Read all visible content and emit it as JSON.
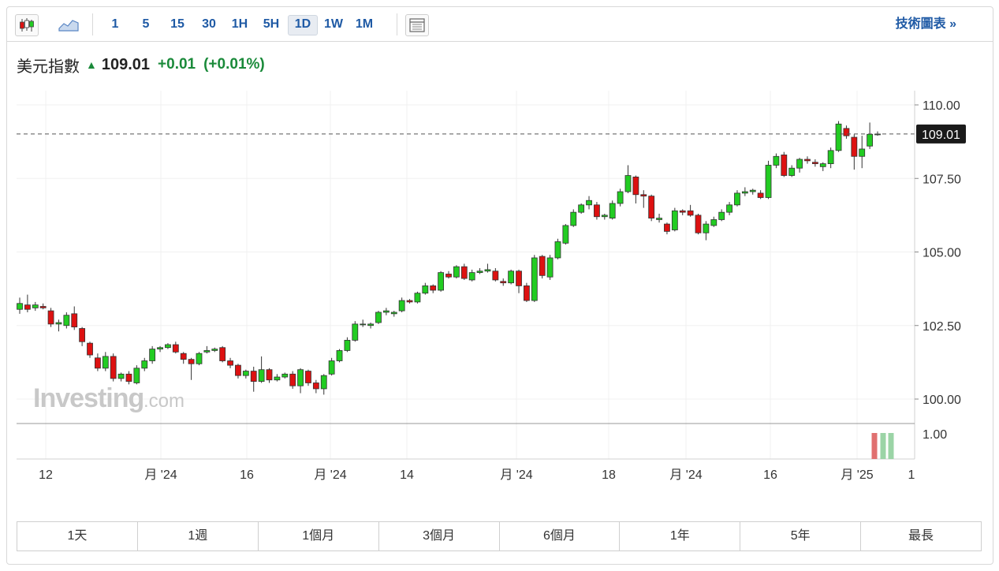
{
  "toolbar": {
    "intervals": [
      "1",
      "5",
      "15",
      "30",
      "1H",
      "5H",
      "1D",
      "1W",
      "1M"
    ],
    "active_interval": "1D",
    "tech_link": "技術圖表 »"
  },
  "quote": {
    "name": "美元指數",
    "price": "109.01",
    "change": "+0.01",
    "change_pct": "(+0.01%)",
    "direction": "up"
  },
  "colors": {
    "up": "#22cc22",
    "down": "#dd1111",
    "link": "#1f5aa5",
    "positive_text": "#1a8a3a"
  },
  "watermark": {
    "brand": "Investing",
    "suffix": ".com"
  },
  "chart_data": {
    "type": "candlestick",
    "y_ticks": [
      "110.00",
      "107.50",
      "105.00",
      "102.50",
      "100.00"
    ],
    "ylim": [
      99.7,
      110.5
    ],
    "x_ticks": [
      "12",
      "月 '24",
      "16",
      "月 '24",
      "14",
      "月 '24",
      "18",
      "月 '24",
      "16",
      "月 '25",
      "1"
    ],
    "last_price_label": "109.01",
    "last_price": 109.01,
    "volume_axis_label": "1.00",
    "candles": [
      [
        103.05,
        103.25,
        103.45,
        102.9
      ],
      [
        103.2,
        103.05,
        103.55,
        102.95
      ],
      [
        103.1,
        103.2,
        103.3,
        103.0
      ],
      [
        103.15,
        103.1,
        103.25,
        103.05
      ],
      [
        103.0,
        102.55,
        103.1,
        102.45
      ],
      [
        102.55,
        102.6,
        102.7,
        102.3
      ],
      [
        102.5,
        102.85,
        102.95,
        102.4
      ],
      [
        102.9,
        102.45,
        103.15,
        102.35
      ],
      [
        102.4,
        101.95,
        102.45,
        101.8
      ],
      [
        101.9,
        101.5,
        101.95,
        101.4
      ],
      [
        101.4,
        101.05,
        101.55,
        100.95
      ],
      [
        101.05,
        101.45,
        101.6,
        100.95
      ],
      [
        101.45,
        100.7,
        101.55,
        100.6
      ],
      [
        100.7,
        100.85,
        100.9,
        100.6
      ],
      [
        100.85,
        100.6,
        100.95,
        100.5
      ],
      [
        100.55,
        101.05,
        101.15,
        100.5
      ],
      [
        101.05,
        101.3,
        101.4,
        100.95
      ],
      [
        101.3,
        101.7,
        101.8,
        101.2
      ],
      [
        101.7,
        101.75,
        101.8,
        101.6
      ],
      [
        101.75,
        101.85,
        101.9,
        101.7
      ],
      [
        101.85,
        101.6,
        101.95,
        101.55
      ],
      [
        101.55,
        101.35,
        101.6,
        101.2
      ],
      [
        101.35,
        101.2,
        101.4,
        100.65
      ],
      [
        101.2,
        101.55,
        101.6,
        101.15
      ],
      [
        101.6,
        101.65,
        101.8,
        101.55
      ],
      [
        101.65,
        101.7,
        101.75,
        101.6
      ],
      [
        101.75,
        101.3,
        101.8,
        101.25
      ],
      [
        101.3,
        101.15,
        101.4,
        101.05
      ],
      [
        101.15,
        100.8,
        101.2,
        100.7
      ],
      [
        100.8,
        100.95,
        101.0,
        100.7
      ],
      [
        100.95,
        100.6,
        101.1,
        100.25
      ],
      [
        100.6,
        101.0,
        101.45,
        100.55
      ],
      [
        101.0,
        100.65,
        101.05,
        100.55
      ],
      [
        100.65,
        100.75,
        100.85,
        100.6
      ],
      [
        100.75,
        100.85,
        100.9,
        100.7
      ],
      [
        100.85,
        100.45,
        100.95,
        100.35
      ],
      [
        100.45,
        101.0,
        101.05,
        100.2
      ],
      [
        100.95,
        100.55,
        101.0,
        100.45
      ],
      [
        100.55,
        100.35,
        100.65,
        100.2
      ],
      [
        100.35,
        100.8,
        100.85,
        100.15
      ],
      [
        100.85,
        101.3,
        101.4,
        100.8
      ],
      [
        101.3,
        101.65,
        101.7,
        101.25
      ],
      [
        101.65,
        102.0,
        102.1,
        101.6
      ],
      [
        102.0,
        102.55,
        102.65,
        101.95
      ],
      [
        102.55,
        102.55,
        102.7,
        102.45
      ],
      [
        102.5,
        102.55,
        102.6,
        102.4
      ],
      [
        102.6,
        102.95,
        103.0,
        102.55
      ],
      [
        102.95,
        103.0,
        103.1,
        102.85
      ],
      [
        102.9,
        102.95,
        103.0,
        102.8
      ],
      [
        103.0,
        103.35,
        103.45,
        102.95
      ],
      [
        103.35,
        103.3,
        103.4,
        103.25
      ],
      [
        103.3,
        103.6,
        103.65,
        103.25
      ],
      [
        103.6,
        103.85,
        103.95,
        103.55
      ],
      [
        103.85,
        103.7,
        103.9,
        103.6
      ],
      [
        103.7,
        104.3,
        104.35,
        103.65
      ],
      [
        104.25,
        104.15,
        104.35,
        104.1
      ],
      [
        104.15,
        104.5,
        104.55,
        104.1
      ],
      [
        104.5,
        104.1,
        104.6,
        104.05
      ],
      [
        104.05,
        104.3,
        104.4,
        104.0
      ],
      [
        104.3,
        104.35,
        104.45,
        104.25
      ],
      [
        104.35,
        104.4,
        104.6,
        104.3
      ],
      [
        104.35,
        104.05,
        104.45,
        104.0
      ],
      [
        104.0,
        103.95,
        104.1,
        103.85
      ],
      [
        103.95,
        104.35,
        104.4,
        103.9
      ],
      [
        104.35,
        103.85,
        104.4,
        103.6
      ],
      [
        103.85,
        103.35,
        103.95,
        103.3
      ],
      [
        103.35,
        104.8,
        104.9,
        103.3
      ],
      [
        104.85,
        104.2,
        104.9,
        104.1
      ],
      [
        104.15,
        104.8,
        104.9,
        104.05
      ],
      [
        104.8,
        105.35,
        105.45,
        104.75
      ],
      [
        105.3,
        105.9,
        105.95,
        105.25
      ],
      [
        105.9,
        106.35,
        106.45,
        105.85
      ],
      [
        106.35,
        106.6,
        106.65,
        106.3
      ],
      [
        106.6,
        106.75,
        106.9,
        106.45
      ],
      [
        106.6,
        106.2,
        106.7,
        106.1
      ],
      [
        106.2,
        106.25,
        106.3,
        106.1
      ],
      [
        106.15,
        106.65,
        106.75,
        106.1
      ],
      [
        106.65,
        107.05,
        107.15,
        106.55
      ],
      [
        107.05,
        107.6,
        107.95,
        107.0
      ],
      [
        107.55,
        106.95,
        107.6,
        106.65
      ],
      [
        106.95,
        106.9,
        107.1,
        106.5
      ],
      [
        106.9,
        106.15,
        106.95,
        106.05
      ],
      [
        106.1,
        106.15,
        106.3,
        106.0
      ],
      [
        105.95,
        105.7,
        106.0,
        105.6
      ],
      [
        105.75,
        106.4,
        106.5,
        105.7
      ],
      [
        106.4,
        106.35,
        106.45,
        106.25
      ],
      [
        106.4,
        106.25,
        106.6,
        106.2
      ],
      [
        106.25,
        105.65,
        106.3,
        105.6
      ],
      [
        105.65,
        105.95,
        106.05,
        105.4
      ],
      [
        105.9,
        106.1,
        106.2,
        105.85
      ],
      [
        106.1,
        106.35,
        106.45,
        106.05
      ],
      [
        106.35,
        106.6,
        106.7,
        106.25
      ],
      [
        106.6,
        107.0,
        107.1,
        106.55
      ],
      [
        107.0,
        107.05,
        107.2,
        106.9
      ],
      [
        107.05,
        107.1,
        107.15,
        106.95
      ],
      [
        107.0,
        106.85,
        107.1,
        106.8
      ],
      [
        106.85,
        107.95,
        108.1,
        106.8
      ],
      [
        107.95,
        108.25,
        108.35,
        107.85
      ],
      [
        108.3,
        107.6,
        108.4,
        107.55
      ],
      [
        107.6,
        107.85,
        107.95,
        107.55
      ],
      [
        107.85,
        108.15,
        108.2,
        107.7
      ],
      [
        108.15,
        108.1,
        108.25,
        108.0
      ],
      [
        108.05,
        108.0,
        108.15,
        107.9
      ],
      [
        107.9,
        108.0,
        108.05,
        107.75
      ],
      [
        108.0,
        108.45,
        108.55,
        107.85
      ],
      [
        108.45,
        109.35,
        109.45,
        108.4
      ],
      [
        109.2,
        108.95,
        109.3,
        108.85
      ],
      [
        108.9,
        108.25,
        109.0,
        107.8
      ],
      [
        108.25,
        108.5,
        108.95,
        107.85
      ],
      [
        108.6,
        109.0,
        109.4,
        108.5
      ],
      [
        109.0,
        109.01,
        109.1,
        108.95
      ]
    ],
    "volume": [
      {
        "dir": "down",
        "level": 1.0
      },
      {
        "dir": "up",
        "level": 1.0
      },
      {
        "dir": "up",
        "level": 1.0
      }
    ]
  },
  "periods": [
    "1天",
    "1週",
    "1個月",
    "3個月",
    "6個月",
    "1年",
    "5年",
    "最長"
  ]
}
